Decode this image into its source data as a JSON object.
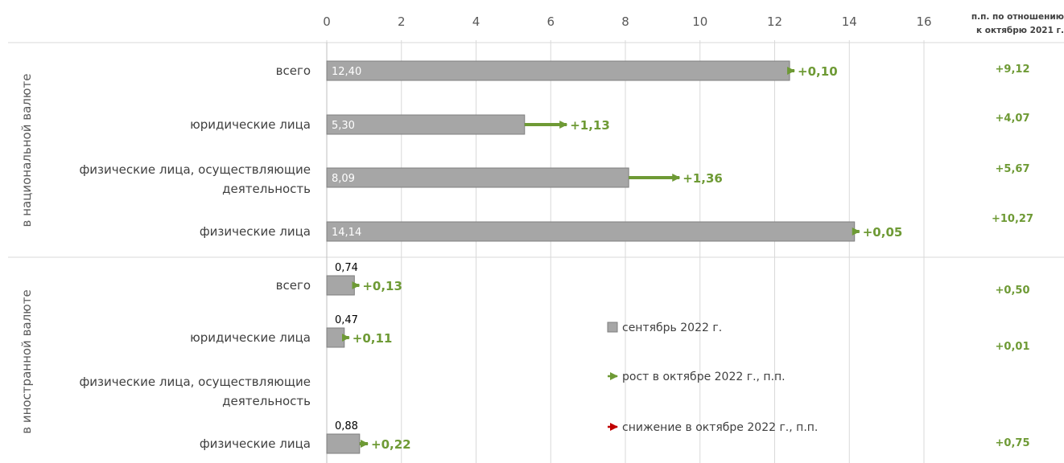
{
  "chart_data": {
    "type": "bar",
    "orientation": "horizontal",
    "xlim": [
      0,
      16
    ],
    "x_ticks": [
      "0",
      "2",
      "4",
      "6",
      "8",
      "10",
      "12",
      "14",
      "16"
    ],
    "grid": true,
    "yoy_header": [
      "п.п. по отношению",
      "к октябрю 2021 г."
    ],
    "groups": [
      {
        "label": "в национальной валюте",
        "items": [
          {
            "category": "всего",
            "category_lines": [
              "всего"
            ],
            "value": 12.4,
            "value_label": "12,40",
            "change": 0.1,
            "change_label": "+0,10",
            "yoy_label": "+9,12"
          },
          {
            "category": "юридические лица",
            "category_lines": [
              "юридические лица"
            ],
            "value": 5.3,
            "value_label": "5,30",
            "change": 1.13,
            "change_label": "+1,13",
            "yoy_label": "+4,07"
          },
          {
            "category": "физические лица, осуществляющие деятельность",
            "category_lines": [
              "физические лица, осуществляющие",
              "деятельность"
            ],
            "value": 8.09,
            "value_label": "8,09",
            "change": 1.36,
            "change_label": "+1,36",
            "yoy_label": "+5,67"
          },
          {
            "category": "физические лица",
            "category_lines": [
              "физические лица"
            ],
            "value": 14.14,
            "value_label": "14,14",
            "change": 0.05,
            "change_label": "+0,05",
            "yoy_label": "+10,27"
          }
        ]
      },
      {
        "label": "в иностранной валюте",
        "items": [
          {
            "category": "всего",
            "category_lines": [
              "всего"
            ],
            "value": 0.74,
            "value_label": "0,74",
            "change": 0.13,
            "change_label": "+0,13",
            "yoy_label": "+0,50"
          },
          {
            "category": "юридические лица",
            "category_lines": [
              "юридические лица"
            ],
            "value": 0.47,
            "value_label": "0,47",
            "change": 0.11,
            "change_label": "+0,11",
            "yoy_label": "+0,01"
          },
          {
            "category": "физические лица, осуществляющие деятельность",
            "category_lines": [
              "физические лица, осуществляющие",
              "деятельность"
            ],
            "value": null,
            "value_label": "",
            "change": null,
            "change_label": "",
            "yoy_label": ""
          },
          {
            "category": "физические лица",
            "category_lines": [
              "физические лица"
            ],
            "value": 0.88,
            "value_label": "0,88",
            "change": 0.22,
            "change_label": "+0,22",
            "yoy_label": "+0,75"
          }
        ]
      }
    ],
    "legend": [
      {
        "label": "сентябрь 2022 г.",
        "kind": "bar"
      },
      {
        "label": "рост в октябре 2022 г., п.п.",
        "kind": "arrow-up"
      },
      {
        "label": "снижение в октябре 2022 г., п.п.",
        "kind": "arrow-down"
      }
    ],
    "legend_position": "center-right",
    "colors": {
      "bar_fill": "#a6a6a6",
      "bar_stroke": "#7f7f7f",
      "increase": "#6e9a35",
      "decrease": "#c00000",
      "grid": "#d9d9d9"
    }
  }
}
